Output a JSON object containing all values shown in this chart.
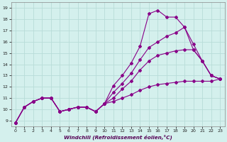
{
  "xlabel": "Windchill (Refroidissement éolien,°C)",
  "background_color": "#d4f0ed",
  "grid_color": "#b8dcd8",
  "line_color": "#880088",
  "xlim": [
    -0.5,
    23.5
  ],
  "ylim": [
    8.5,
    19.5
  ],
  "xticks": [
    0,
    1,
    2,
    3,
    4,
    5,
    6,
    7,
    8,
    9,
    10,
    11,
    12,
    13,
    14,
    15,
    16,
    17,
    18,
    19,
    20,
    21,
    22,
    23
  ],
  "yticks": [
    9,
    10,
    11,
    12,
    13,
    14,
    15,
    16,
    17,
    18,
    19
  ],
  "series": [
    {
      "x": [
        0,
        1,
        2,
        3,
        4,
        5,
        6,
        7,
        8,
        9,
        10,
        11,
        12,
        13,
        14,
        15,
        16,
        17,
        18,
        19,
        20,
        21,
        22,
        23
      ],
      "y": [
        8.8,
        10.2,
        10.7,
        11.0,
        11.0,
        9.8,
        10.0,
        10.2,
        10.2,
        9.8,
        10.5,
        12.1,
        13.0,
        14.1,
        15.6,
        18.5,
        18.8,
        18.2,
        18.2,
        17.3,
        15.3,
        14.3,
        13.0,
        12.7
      ]
    },
    {
      "x": [
        0,
        1,
        2,
        3,
        4,
        5,
        6,
        7,
        8,
        9,
        10,
        11,
        12,
        13,
        14,
        15,
        16,
        17,
        18,
        19,
        20,
        21,
        22,
        23
      ],
      "y": [
        8.8,
        10.2,
        10.7,
        11.0,
        11.0,
        9.8,
        10.0,
        10.2,
        10.2,
        9.8,
        10.5,
        11.5,
        12.3,
        13.2,
        14.4,
        15.5,
        16.0,
        16.5,
        16.8,
        17.3,
        15.8,
        14.3,
        13.0,
        12.7
      ]
    },
    {
      "x": [
        0,
        1,
        2,
        3,
        4,
        5,
        6,
        7,
        8,
        9,
        10,
        11,
        12,
        13,
        14,
        15,
        16,
        17,
        18,
        19,
        20,
        21,
        22,
        23
      ],
      "y": [
        8.8,
        10.2,
        10.7,
        11.0,
        11.0,
        9.8,
        10.0,
        10.2,
        10.2,
        9.8,
        10.5,
        11.0,
        11.8,
        12.5,
        13.5,
        14.3,
        14.8,
        15.0,
        15.2,
        15.3,
        15.3,
        14.3,
        13.0,
        12.7
      ]
    },
    {
      "x": [
        0,
        1,
        2,
        3,
        4,
        5,
        6,
        7,
        8,
        9,
        10,
        11,
        12,
        13,
        14,
        15,
        16,
        17,
        18,
        19,
        20,
        21,
        22,
        23
      ],
      "y": [
        8.8,
        10.2,
        10.7,
        11.0,
        11.0,
        9.8,
        10.0,
        10.2,
        10.2,
        9.8,
        10.5,
        10.7,
        11.0,
        11.3,
        11.7,
        12.0,
        12.2,
        12.3,
        12.4,
        12.5,
        12.5,
        12.5,
        12.5,
        12.7
      ]
    }
  ]
}
